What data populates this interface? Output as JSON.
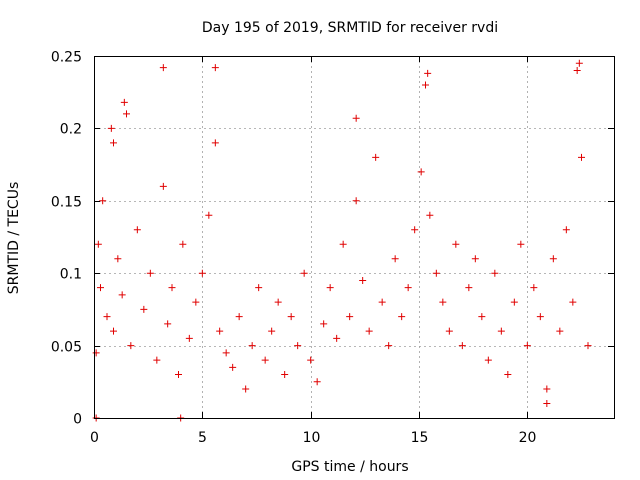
{
  "chart_data": {
    "type": "scatter",
    "title": "Day 195 of 2019, SRMTID for receiver rvdi",
    "xlabel": "GPS time / hours",
    "ylabel": "SRMTID / TECUs",
    "xlim": [
      0,
      24
    ],
    "ylim": [
      0,
      0.25
    ],
    "xticks": [
      0,
      5,
      10,
      15,
      20
    ],
    "xtick_labels": [
      "0",
      "5",
      "10",
      "15",
      "20"
    ],
    "yticks": [
      0,
      0.05,
      0.1,
      0.15,
      0.2,
      0.25
    ],
    "ytick_labels": [
      "0",
      "0.05",
      "0.1",
      "0.15",
      "0.2",
      "0.25"
    ],
    "grid": true,
    "marker": "plus",
    "color": "#e00000",
    "series": [
      {
        "name": "SRMTID",
        "x": [
          0.1,
          0.1,
          0.2,
          0.3,
          0.4,
          0.6,
          0.8,
          0.9,
          1.1,
          1.3,
          1.5,
          1.7,
          2.0,
          2.3,
          2.6,
          2.9,
          3.2,
          3.4,
          3.6,
          3.9,
          4.1,
          4.4,
          4.7,
          5.0,
          5.3,
          5.6,
          5.8,
          6.1,
          6.4,
          6.7,
          7.0,
          7.3,
          7.6,
          7.9,
          8.2,
          8.5,
          8.8,
          9.1,
          9.4,
          9.7,
          10.0,
          10.3,
          10.6,
          10.9,
          11.2,
          11.5,
          11.8,
          12.1,
          12.4,
          12.7,
          13.0,
          13.3,
          13.6,
          13.9,
          14.2,
          14.5,
          14.8,
          15.1,
          15.3,
          15.5,
          15.8,
          16.1,
          16.4,
          16.7,
          17.0,
          17.3,
          17.6,
          17.9,
          18.2,
          18.5,
          18.8,
          19.1,
          19.4,
          19.7,
          20.0,
          20.3,
          20.6,
          20.9,
          21.2,
          21.5,
          21.8,
          22.1,
          22.3,
          22.5,
          22.8,
          3.2,
          5.6,
          15.4,
          22.4,
          1.4,
          0.9,
          12.1,
          4.0,
          20.9
        ],
        "y": [
          0.0,
          0.045,
          0.12,
          0.09,
          0.15,
          0.07,
          0.2,
          0.06,
          0.11,
          0.085,
          0.21,
          0.05,
          0.13,
          0.075,
          0.1,
          0.04,
          0.16,
          0.065,
          0.09,
          0.03,
          0.12,
          0.055,
          0.08,
          0.1,
          0.14,
          0.19,
          0.06,
          0.045,
          0.035,
          0.07,
          0.02,
          0.05,
          0.09,
          0.04,
          0.06,
          0.08,
          0.03,
          0.07,
          0.05,
          0.1,
          0.04,
          0.025,
          0.065,
          0.09,
          0.055,
          0.12,
          0.07,
          0.15,
          0.095,
          0.06,
          0.18,
          0.08,
          0.05,
          0.11,
          0.07,
          0.09,
          0.13,
          0.17,
          0.23,
          0.14,
          0.1,
          0.08,
          0.06,
          0.12,
          0.05,
          0.09,
          0.11,
          0.07,
          0.04,
          0.1,
          0.06,
          0.03,
          0.08,
          0.12,
          0.05,
          0.09,
          0.07,
          0.02,
          0.11,
          0.06,
          0.13,
          0.08,
          0.24,
          0.18,
          0.05,
          0.242,
          0.242,
          0.238,
          0.245,
          0.218,
          0.19,
          0.207,
          0.0,
          0.01
        ]
      }
    ]
  }
}
